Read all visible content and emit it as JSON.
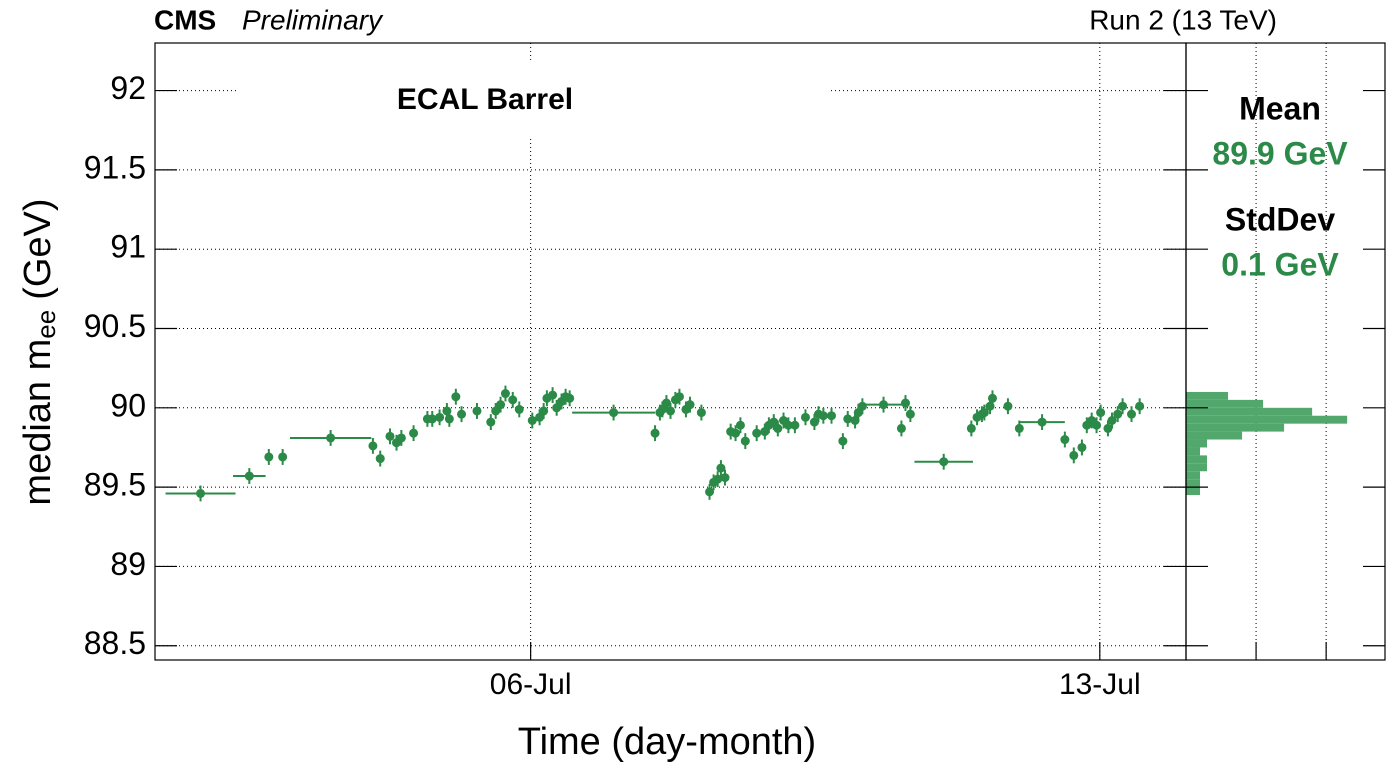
{
  "chart_data": [
    {
      "type": "errorbar",
      "experiment": "CMS",
      "status": "Preliminary",
      "run_label": "Run 2 (13 TeV)",
      "annotation": "ECAL Barrel",
      "x_label": "Time (day-month)",
      "y_label": {
        "text": "median m",
        "subscript": "ee",
        "unit": "(GeV)"
      },
      "xlim": [
        1.38,
        14.06
      ],
      "ylim": [
        88.41,
        92.3
      ],
      "xticks": [
        {
          "value": 6,
          "label": "06-Jul"
        },
        {
          "value": 13,
          "label": "13-Jul"
        }
      ],
      "yticks": [
        88.5,
        89,
        89.5,
        90,
        90.5,
        91,
        91.5,
        92
      ],
      "grid": true,
      "series": [
        {
          "color": "#2b8a47",
          "x": [
            1.94,
            2.54,
            2.78,
            2.95,
            3.54,
            4.06,
            4.15,
            4.27,
            4.35,
            4.41,
            4.56,
            4.73,
            4.79,
            4.88,
            4.97,
            5.0,
            5.08,
            5.15,
            5.34,
            5.51,
            5.57,
            5.63,
            5.69,
            5.78,
            5.86,
            6.02,
            6.11,
            6.16,
            6.2,
            6.27,
            6.32,
            6.38,
            6.43,
            6.48,
            7.02,
            7.53,
            7.59,
            7.62,
            7.67,
            7.72,
            7.78,
            7.83,
            7.91,
            7.96,
            8.1,
            8.2,
            8.25,
            8.3,
            8.34,
            8.39,
            8.46,
            8.52,
            8.58,
            8.64,
            8.78,
            8.88,
            8.93,
            8.99,
            9.04,
            9.11,
            9.17,
            9.25,
            9.38,
            9.49,
            9.54,
            9.6,
            9.7,
            9.84,
            9.9,
            9.99,
            10.03,
            10.08,
            10.34,
            10.56,
            10.61,
            10.67,
            11.08,
            11.42,
            11.49,
            11.55,
            11.58,
            11.65,
            11.68,
            11.87,
            12.01,
            12.29,
            12.57,
            12.68,
            12.78,
            12.84,
            12.9,
            12.96,
            13.01,
            13.1,
            13.15,
            13.22,
            13.28,
            13.39,
            13.49
          ],
          "values": [
            89.46,
            89.57,
            89.69,
            89.69,
            89.81,
            89.76,
            89.68,
            89.82,
            89.78,
            89.81,
            89.84,
            89.93,
            89.93,
            89.94,
            89.98,
            89.93,
            90.07,
            89.96,
            89.98,
            89.91,
            89.98,
            90.02,
            90.09,
            90.05,
            89.99,
            89.92,
            89.94,
            89.98,
            90.06,
            90.08,
            90.0,
            90.04,
            90.07,
            90.06,
            89.97,
            89.84,
            89.97,
            89.99,
            90.03,
            89.98,
            90.05,
            90.07,
            89.99,
            90.02,
            89.97,
            89.47,
            89.53,
            89.55,
            89.62,
            89.56,
            89.85,
            89.84,
            89.89,
            89.79,
            89.84,
            89.85,
            89.89,
            89.91,
            89.87,
            89.92,
            89.89,
            89.89,
            89.94,
            89.91,
            89.96,
            89.95,
            89.95,
            89.79,
            89.93,
            89.92,
            89.97,
            90.01,
            90.02,
            89.87,
            90.03,
            89.96,
            89.66,
            89.87,
            89.94,
            89.96,
            89.97,
            90.01,
            90.06,
            90.01,
            89.87,
            89.91,
            89.8,
            89.7,
            89.75,
            89.89,
            89.92,
            89.89,
            89.97,
            89.87,
            89.92,
            89.96,
            90.01,
            89.96,
            90.01
          ],
          "xerr": [
            0.43,
            0.2,
            0.04,
            0.04,
            0.5,
            0.04,
            0.04,
            0.04,
            0.04,
            0.04,
            0.04,
            0.04,
            0.04,
            0.04,
            0.04,
            0.04,
            0.04,
            0.04,
            0.04,
            0.04,
            0.04,
            0.04,
            0.04,
            0.04,
            0.04,
            0.04,
            0.04,
            0.04,
            0.04,
            0.04,
            0.04,
            0.04,
            0.04,
            0.04,
            0.51,
            0.04,
            0.04,
            0.04,
            0.04,
            0.04,
            0.04,
            0.04,
            0.04,
            0.04,
            0.04,
            0.04,
            0.04,
            0.04,
            0.04,
            0.04,
            0.04,
            0.04,
            0.04,
            0.04,
            0.04,
            0.04,
            0.04,
            0.04,
            0.04,
            0.04,
            0.04,
            0.04,
            0.04,
            0.04,
            0.04,
            0.04,
            0.04,
            0.04,
            0.04,
            0.04,
            0.04,
            0.04,
            0.32,
            0.04,
            0.04,
            0.04,
            0.36,
            0.04,
            0.04,
            0.04,
            0.04,
            0.04,
            0.04,
            0.04,
            0.04,
            0.28,
            0.04,
            0.04,
            0.04,
            0.04,
            0.04,
            0.04,
            0.04,
            0.04,
            0.04,
            0.04,
            0.04,
            0.04,
            0.04
          ],
          "yerr": [
            0.05,
            0.05,
            0.05,
            0.05,
            0.05,
            0.05,
            0.05,
            0.05,
            0.05,
            0.05,
            0.05,
            0.05,
            0.05,
            0.05,
            0.05,
            0.05,
            0.05,
            0.05,
            0.05,
            0.05,
            0.05,
            0.05,
            0.05,
            0.05,
            0.05,
            0.05,
            0.05,
            0.05,
            0.05,
            0.05,
            0.05,
            0.05,
            0.05,
            0.05,
            0.05,
            0.05,
            0.05,
            0.05,
            0.05,
            0.05,
            0.05,
            0.05,
            0.05,
            0.05,
            0.05,
            0.05,
            0.05,
            0.05,
            0.05,
            0.05,
            0.05,
            0.05,
            0.05,
            0.05,
            0.05,
            0.05,
            0.05,
            0.05,
            0.05,
            0.05,
            0.05,
            0.05,
            0.05,
            0.05,
            0.05,
            0.05,
            0.05,
            0.05,
            0.05,
            0.05,
            0.05,
            0.05,
            0.05,
            0.05,
            0.05,
            0.05,
            0.05,
            0.05,
            0.05,
            0.05,
            0.05,
            0.05,
            0.05,
            0.05,
            0.05,
            0.05,
            0.05,
            0.05,
            0.05,
            0.05,
            0.05,
            0.05,
            0.05,
            0.05,
            0.05,
            0.05,
            0.05,
            0.05,
            0.05
          ]
        }
      ]
    },
    {
      "type": "histogram",
      "orientation": "horizontal",
      "color": "#52a86c",
      "bins": [
        89.45,
        89.5,
        89.55,
        89.6,
        89.65,
        89.7,
        89.75,
        89.8,
        89.85,
        89.9,
        89.95,
        90,
        90.05,
        90.1
      ],
      "counts": [
        2,
        2,
        2,
        3,
        3,
        2,
        3,
        8,
        14,
        23,
        18,
        11,
        6
      ],
      "xlim": [
        0,
        28.4
      ],
      "xticks": [
        10,
        20
      ],
      "ylim": [
        88.41,
        92.3
      ],
      "grid": true,
      "stats": [
        {
          "label": "Mean",
          "value": "89.9 GeV"
        },
        {
          "label": "StdDev",
          "value": "0.1 GeV"
        }
      ],
      "stats_color": "#2b8a47"
    }
  ]
}
